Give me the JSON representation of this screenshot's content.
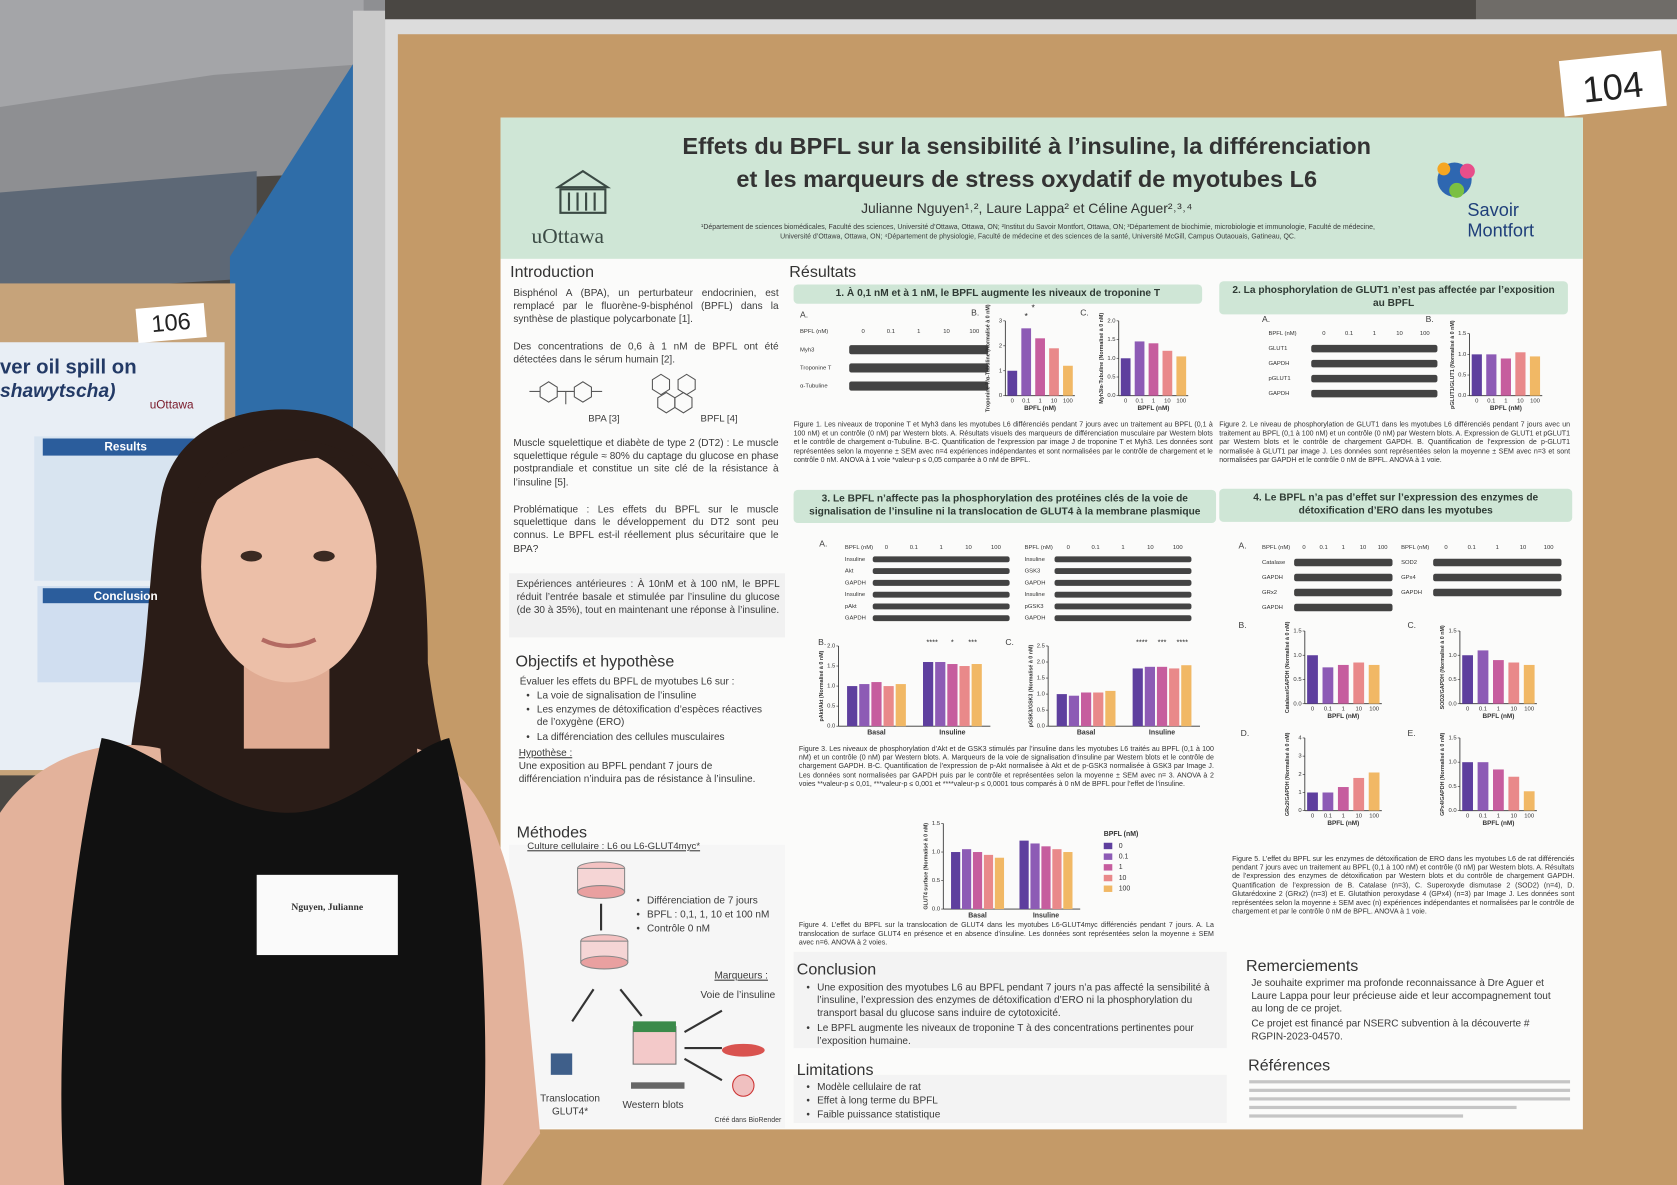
{
  "board_number": "104",
  "side_board_number": "106",
  "side_poster": {
    "title_fragment": "ver oil spill on",
    "subtitle_fragment": "shawytscha)",
    "logo": "uOttawa",
    "sections": [
      "Results",
      "Conclusion"
    ]
  },
  "name_tag": "Nguyen, Julianne",
  "poster": {
    "title_lines": [
      "Effets du BPFL sur la sensibilité à l’insuline, la différenciation",
      "et les marqueurs de stress oxydatif de myotubes L6"
    ],
    "authors": "Julianne Nguyen¹˒², Laure Lappa² et Céline Aguer²˒³˒⁴",
    "affiliations": "¹Département de sciences biomédicales, Faculté des sciences, Université d’Ottawa, Ottawa, ON; ²Institut du Savoir Montfort, Ottawa, ON; ³Département de biochimie, microbiologie et immunologie, Faculté de médecine, Université d’Ottawa, Ottawa, ON; ⁴Département de physiologie, Faculté de médecine et des sciences de la santé, Université McGill, Campus Outaouais, Gatineau, QC.",
    "logo_left": "uOttawa",
    "logo_right": [
      "Savoir",
      "Montfort"
    ],
    "introduction": {
      "heading": "Introduction",
      "paragraphs": [
        "Bisphénol A (BPA), un perturbateur endocrinien, est remplacé par le fluorène-9-bisphénol (BPFL) dans la synthèse de plastique polycarbonate [1].",
        "Des concentrations de 0,6 à 1 nM de BPFL ont été détectées dans le sérum humain [2].",
        "Muscle squelettique et diabète de type 2 (DT2) : Le muscle squelettique régule ≈ 80% du captage du glucose en phase postprandiale et constitue un site clé de la résistance à l’insuline [5].",
        "Problématique : Les effets du BPFL sur le muscle squelettique dans le développement du DT2 sont peu connus. Le BPFL est-il réellement plus sécuritaire que le BPA?",
        "Expériences antérieures : À 10nM et à 100 nM, le BPFL réduit l’entrée basale et stimulée par l’insuline du glucose (de 30 à 35%), tout en maintenant une réponse à l’insuline."
      ],
      "chem_labels": [
        "BPA [3]",
        "BPFL [4]"
      ]
    },
    "objectives": {
      "heading": "Objectifs et hypothèse",
      "intro": "Évaluer les effets du BPFL de myotubes L6 sur :",
      "bullets": [
        "La voie de signalisation de l’insuline",
        "Les enzymes de détoxification d’espèces réactives de l’oxygène (ERO)",
        "La différenciation des cellules musculaires"
      ],
      "hypothesis_heading": "Hypothèse :",
      "hypothesis": "Une exposition au BPFL pendant 7 jours de différenciation n’induira pas de résistance à l’insuline."
    },
    "methods": {
      "heading": "Méthodes",
      "culture": "Culture cellulaire : L6 ou L6-GLUT4myc*",
      "bullets": [
        "Différenciation de 7 jours",
        "BPFL : 0,1, 1, 10 et 100 nM",
        "Contrôle 0 nM"
      ],
      "markers_heading": "Marqueurs :",
      "labels": [
        "Voie de l’insuline",
        "Translocation GLUT4*",
        "Western blots"
      ],
      "credit": "Créé dans BioRender"
    },
    "results": {
      "heading": "Résultats",
      "sections": [
        "1. À 0,1 nM et à 1 nM, le BPFL augmente les niveaux de troponine T",
        "2. La phosphorylation de GLUT1 n’est pas affectée par l’exposition au BPFL",
        "3. Le BPFL n’affecte pas la phosphorylation des protéines clés de la voie de signalisation de l’insuline ni la translocation de GLUT4 à la membrane plasmique",
        "4. Le BPFL n’a pas d’effet sur l’expression des enzymes de détoxification d’ERO dans les myotubes"
      ],
      "captions": [
        "Figure 1. Les niveaux de troponine T et Myh3 dans les myotubes L6 différenciés pendant 7 jours avec un traitement au BPFL (0,1 à 100 nM) et un contrôle (0 nM) par Western blots. A. Résultats visuels des marqueurs de différenciation musculaire par Western blots et le contrôle de chargement α-Tubuline. B-C. Quantification de l’expression par image J de troponine T et Myh3. Les données sont représentées selon la moyenne ± SEM avec n=4 expériences indépendantes et sont normalisées par le contrôle de chargement et le contrôle 0 nM. ANOVA à 1 voie *valeur-p ≤ 0,05 comparée à 0 nM de BPFL.",
        "Figure 2. Le niveau de phosphorylation de GLUT1 dans les myotubes L6 différenciés pendant 7 jours avec un traitement au BPFL (0,1 à 100 nM) et un contrôle (0 nM) par Western blots. A. Expression de GLUT1 et pGLUT1 par Western blots et le contrôle de chargement GAPDH. B. Quantification de l’expression de p-GLUT1 normalisée à GLUT1 par image J. Les données sont représentées selon la moyenne ± SEM avec n=3 et sont normalisées par GAPDH et le contrôle 0 nM de BPFL. ANOVA à 1 voie.",
        "Figure 3. Les niveaux de phosphorylation d’Akt et de GSK3 stimulés par l’insuline dans les myotubes L6 traités au BPFL (0,1 à 100 nM) et un contrôle (0 nM) par Western blots. A. Marqueurs de la voie de signalisation d’insuline par Western blots et le contrôle de chargement GAPDH. B-C. Quantification de l’expression de p-Akt normalisée à Akt et de p-GSK3 normalisée à GSK3 par Image J. Les données sont normalisées par GAPDH puis par le contrôle et représentées selon la moyenne ± SEM avec n= 3. ANOVA à 2 voies **valeur-p ≤ 0,01, ***valeur-p ≤ 0,001 et ****valeur-p ≤ 0,0001 tous comparés à 0 nM de BPFL pour l’effet de l’insuline.",
        "Figure 4. L’effet du BPFL sur la translocation de GLUT4 dans les myotubes L6-GLUT4myc différenciés pendant 7 jours. A. La translocation de surface GLUT4 en présence et en absence d’insuline. Les données sont représentées selon la moyenne ± SEM avec n=6. ANOVA à 2 voies.",
        "Figure 5. L’effet du BPFL sur les enzymes de détoxification de ERO dans les myotubes L6 de rat différenciés pendant 7 jours avec un traitement au BPFL (0,1 à 100 nM) et contrôle (0 nM) par Western blots. A. Résultats de l’expression des enzymes de détoxification par Western blots et du contrôle de chargement GAPDH. Quantification de l’expression de B. Catalase (n=3), C. Superoxyde dismutase 2 (SOD2) (n=4), D. Glutarédoxine 2 (GRx2) (n=3) et E. Glutathion peroxydase 4 (GPx4) (n=3) par Image J. Les données sont représentées selon la moyenne ± SEM avec (n) expériences indépendantes et normalisées par le contrôle de chargement et par le contrôle 0 nM de BPFL. ANOVA à 1 voie."
      ]
    },
    "bpfl_label": "BPFL (nM)",
    "lanes": [
      "0",
      "0.1",
      "1",
      "10",
      "100"
    ],
    "groups": [
      "Basal",
      "Insuline"
    ],
    "panel_letters": [
      "A.",
      "B.",
      "C.",
      "D.",
      "E."
    ],
    "bar_colors": [
      "#5e3f9e",
      "#8d5bb5",
      "#c65d9e",
      "#e9898a",
      "#f1b865"
    ],
    "blots": [
      {
        "rows": [
          "Myh3",
          "Troponine T",
          "α-Tubuline"
        ]
      },
      {
        "rows": [
          "GLUT1",
          "GAPDH",
          "pGLUT1",
          "GAPDH"
        ]
      },
      {
        "rows": [
          "Insuline",
          "Akt",
          "GAPDH",
          "Insuline",
          "pAkt",
          "GAPDH"
        ]
      },
      {
        "rows": [
          "Insuline",
          "GSK3",
          "GAPDH",
          "Insuline",
          "pGSK3",
          "GAPDH"
        ]
      },
      {
        "rows": [
          "Catalase",
          "GAPDH",
          "GRx2",
          "GAPDH"
        ]
      },
      {
        "rows": [
          "SOD2",
          "GPx4",
          "GAPDH"
        ]
      }
    ],
    "charts": [
      {
        "type": "bar",
        "ylabel": "Troponine T/α-Tubuline (Normalisé à 0 nM)",
        "values": [
          1.0,
          2.7,
          2.3,
          1.9,
          1.2
        ],
        "ylim": [
          0,
          3
        ],
        "yticks": [
          0,
          1,
          2,
          3
        ],
        "annotations": [
          "*",
          "*"
        ]
      },
      {
        "type": "bar",
        "ylabel": "Myh3/α-Tubuline (Normalisé à 0 nM)",
        "values": [
          1.0,
          1.45,
          1.4,
          1.2,
          1.05
        ],
        "ylim": [
          0,
          2
        ],
        "yticks": [
          {
            "value": 0,
            "label": "0.0"
          },
          {
            "value": 0.5,
            "label": "0.5"
          },
          {
            "value": 1,
            "label": "1.0"
          },
          {
            "value": 1.5,
            "label": "1.5"
          },
          {
            "value": 2,
            "label": "2.0"
          }
        ]
      },
      {
        "type": "bar",
        "ylabel": "pGLUT1/GLUT1 (Normalisé à 0 nM)",
        "values": [
          1.0,
          1.0,
          0.9,
          1.05,
          0.95
        ],
        "ylim": [
          0,
          1.5
        ],
        "yticks": [
          {
            "value": 0,
            "label": "0.0"
          },
          {
            "value": 0.5,
            "label": "0.5"
          },
          {
            "value": 1,
            "label": "1.0"
          },
          {
            "value": 1.5,
            "label": "1.5"
          }
        ]
      },
      {
        "type": "grouped_bar",
        "ylabel": "pAkt/Akt (Normalisé à 0 nM)",
        "values": [
          [
            1.0,
            1.05,
            1.1,
            1.0,
            1.05
          ],
          [
            1.6,
            1.6,
            1.55,
            1.5,
            1.55
          ]
        ],
        "ylim": [
          0,
          2
        ],
        "yticks": [
          {
            "value": 0,
            "label": "0.0"
          },
          {
            "value": 0.5,
            "label": "0.5"
          },
          {
            "value": 1,
            "label": "1.0"
          },
          {
            "value": 1.5,
            "label": "1.5"
          },
          {
            "value": 2,
            "label": "2.0"
          }
        ],
        "annotations": [
          "****",
          "*",
          "***"
        ]
      },
      {
        "type": "grouped_bar",
        "ylabel": "pGSK3/GSK3 (Normalisé à 0 nM)",
        "values": [
          [
            1.0,
            0.95,
            1.05,
            1.05,
            1.1
          ],
          [
            1.8,
            1.85,
            1.85,
            1.8,
            1.9
          ]
        ],
        "ylim": [
          0,
          2.5
        ],
        "yticks": [
          {
            "value": 0,
            "label": "0.0"
          },
          {
            "value": 0.5,
            "label": "0.5"
          },
          {
            "value": 1,
            "label": "1.0"
          },
          {
            "value": 1.5,
            "label": "1.5"
          },
          {
            "value": 2,
            "label": "2.0"
          },
          {
            "value": 2.5,
            "label": "2.5"
          }
        ],
        "annotations": [
          "****",
          "***",
          "****"
        ]
      },
      {
        "type": "grouped_bar",
        "ylabel": "GLUT4 surface (Normalisé à 0 nM)",
        "values": [
          [
            1.0,
            1.05,
            1.0,
            0.95,
            0.9
          ],
          [
            1.2,
            1.15,
            1.1,
            1.05,
            1.0
          ]
        ],
        "ylim": [
          0,
          1.5
        ],
        "yticks": [
          {
            "value": 0,
            "label": "0.0"
          },
          {
            "value": 0.5,
            "label": "0.5"
          },
          {
            "value": 1,
            "label": "1.0"
          },
          {
            "value": 1.5,
            "label": "1.5"
          }
        ],
        "legend": true
      },
      {
        "type": "bar",
        "ylabel": "Catalase/GAPDH (Normalisé à 0 nM)",
        "values": [
          1.0,
          0.75,
          0.8,
          0.85,
          0.8
        ],
        "ylim": [
          0,
          1.5
        ],
        "yticks": [
          {
            "value": 0,
            "label": "0.0"
          },
          {
            "value": 0.5,
            "label": "0.5"
          },
          {
            "value": 1,
            "label": "1.0"
          },
          {
            "value": 1.5,
            "label": "1.5"
          }
        ]
      },
      {
        "type": "bar",
        "ylabel": "SOD2/GAPDH (Normalisé à 0 nM)",
        "values": [
          1.0,
          1.1,
          0.9,
          0.85,
          0.8
        ],
        "ylim": [
          0,
          1.5
        ],
        "yticks": [
          {
            "value": 0,
            "label": "0.0"
          },
          {
            "value": 0.5,
            "label": "0.5"
          },
          {
            "value": 1,
            "label": "1.0"
          },
          {
            "value": 1.5,
            "label": "1.5"
          }
        ]
      },
      {
        "type": "bar",
        "ylabel": "GRx2/GAPDH (Normalisé à 0 nM)",
        "values": [
          1.0,
          1.0,
          1.3,
          1.8,
          2.1
        ],
        "ylim": [
          0,
          4
        ],
        "yticks": [
          0,
          1,
          2,
          3,
          4
        ]
      },
      {
        "type": "bar",
        "ylabel": "GPx4/GAPDH (Normalisé à 0 nM)",
        "values": [
          1.0,
          1.0,
          0.85,
          0.7,
          0.4
        ],
        "ylim": [
          0,
          1.5
        ],
        "yticks": [
          {
            "value": 0,
            "label": "0.0"
          },
          {
            "value": 0.5,
            "label": "0.5"
          },
          {
            "value": 1,
            "label": "1.0"
          },
          {
            "value": 1.5,
            "label": "1.5"
          }
        ]
      }
    ],
    "conclusion": {
      "heading": "Conclusion",
      "bullets": [
        "Une exposition des myotubes L6 au BPFL pendant 7 jours n’a pas affecté la sensibilité à l’insuline, l’expression des enzymes de détoxification d’ERO ni la phosphorylation du transport basal du glucose sans induire de cytotoxicité.",
        "Le BPFL augmente les niveaux de troponine T à des concentrations pertinentes pour l’exposition humaine."
      ]
    },
    "limitations": {
      "heading": "Limitations",
      "bullets": [
        "Modèle cellulaire de rat",
        "Effet à long terme du BPFL",
        "Faible puissance statistique"
      ]
    },
    "acknowledgements": {
      "heading": "Remerciements",
      "paragraphs": [
        "Je souhaite exprimer ma profonde reconnaissance à Dre Aguer et Laure Lappa pour leur précieuse aide et leur accompagnement tout au long de ce projet.",
        "Ce projet est financé par NSERC subvention à la découverte # RGPIN-2023-04570."
      ]
    },
    "references": {
      "heading": "Références"
    }
  }
}
